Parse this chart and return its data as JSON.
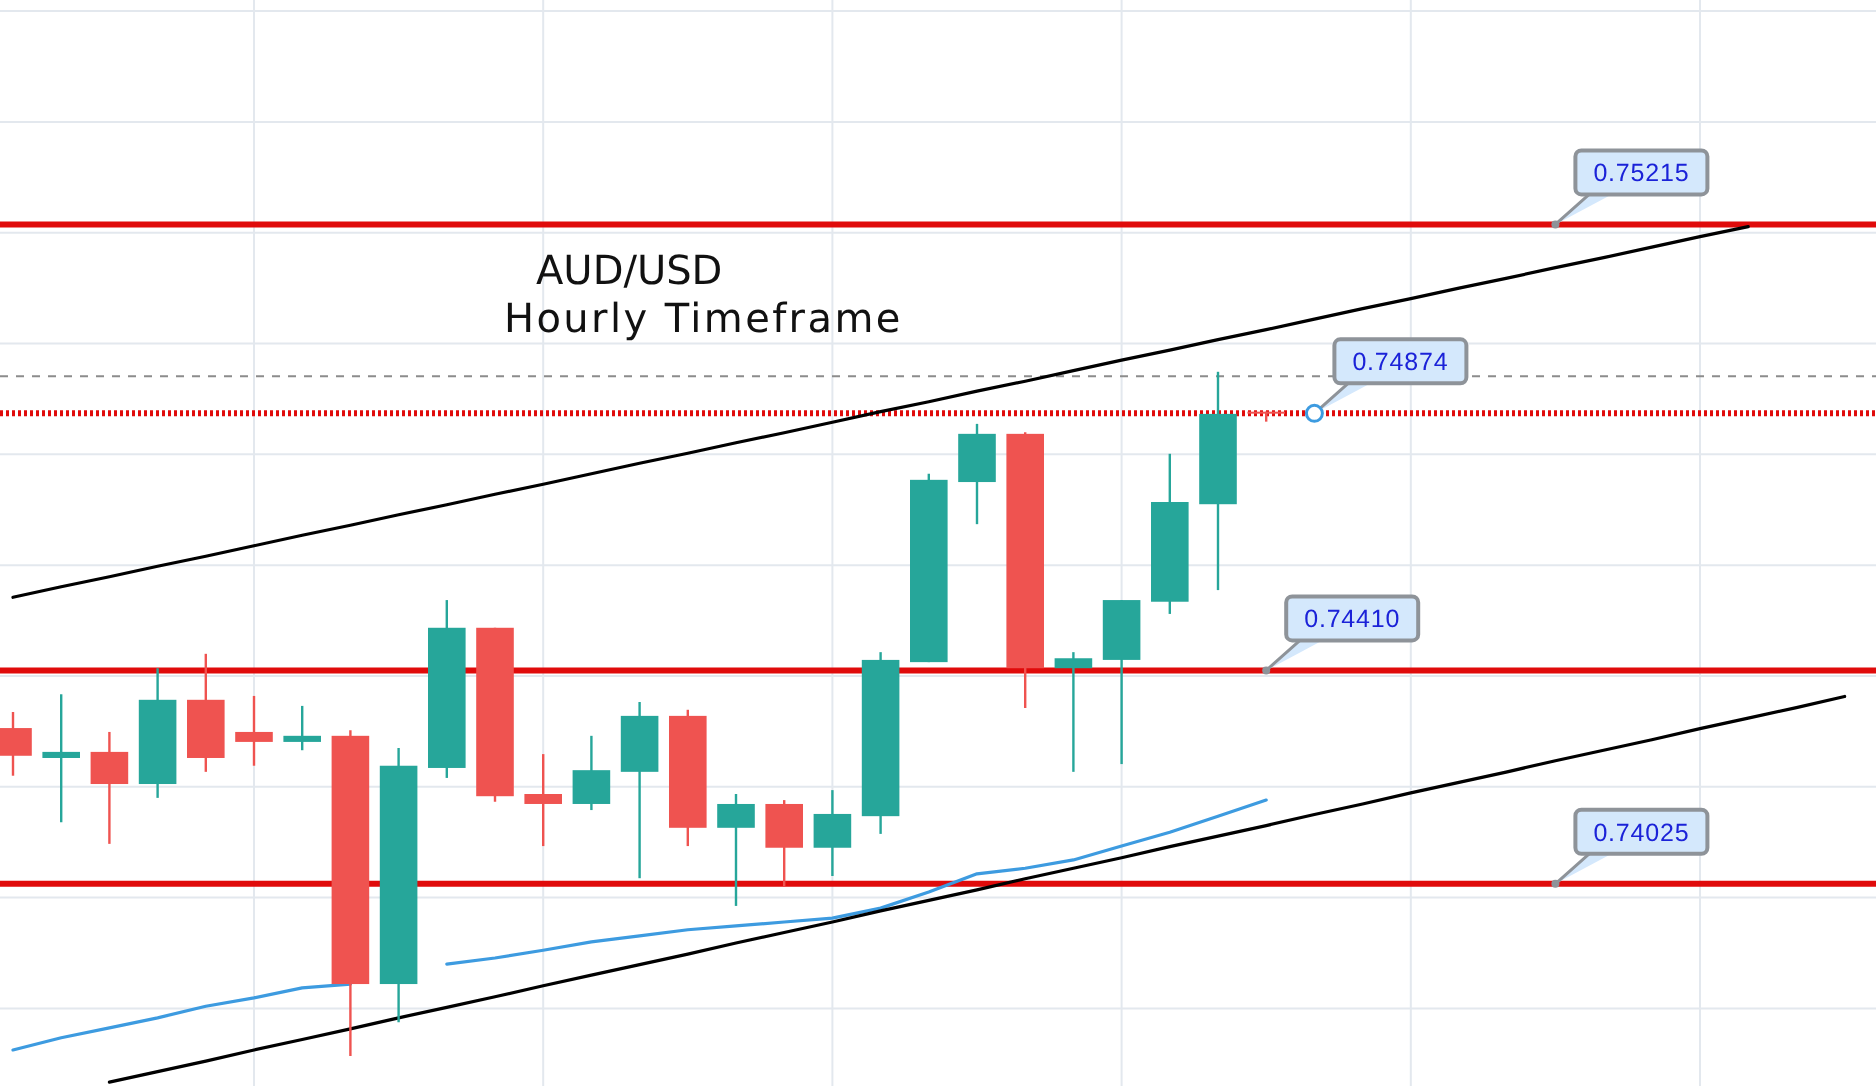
{
  "chart_data": {
    "type": "candlestick",
    "title": "AUD/USD",
    "subtitle": "Hourly Timeframe",
    "categories": [
      null,
      null,
      null,
      null,
      null,
      null,
      null,
      null,
      null,
      null,
      null,
      null,
      null,
      null,
      null,
      null,
      null,
      null,
      null,
      null,
      null,
      null,
      null,
      null,
      null,
      null,
      null,
      null,
      null,
      null,
      null,
      null,
      null,
      null,
      null,
      null,
      null,
      null,
      null
    ],
    "ohlc": [
      [
        0.74306,
        0.74335,
        0.7422,
        0.74256
      ],
      [
        0.74252,
        0.74367,
        0.74136,
        0.74263
      ],
      [
        0.74263,
        0.74299,
        0.74097,
        0.74205
      ],
      [
        0.74205,
        0.74414,
        0.7418,
        0.74357
      ],
      [
        0.74357,
        0.7444,
        0.74227,
        0.74252
      ],
      [
        0.74299,
        0.74364,
        0.74238,
        0.74281
      ],
      [
        0.74281,
        0.74346,
        0.74266,
        0.74292
      ],
      [
        0.74292,
        0.74302,
        0.73714,
        0.73844
      ],
      [
        0.73844,
        0.7427,
        0.73775,
        0.74238
      ],
      [
        0.74234,
        0.74537,
        0.74216,
        0.74487
      ],
      [
        0.74487,
        0.74487,
        0.74173,
        0.74183
      ],
      [
        0.74187,
        0.74259,
        0.74093,
        0.74169
      ],
      [
        0.74169,
        0.74292,
        0.74158,
        0.7423
      ],
      [
        0.74227,
        0.74353,
        0.74035,
        0.74328
      ],
      [
        0.74328,
        0.74339,
        0.74093,
        0.74126
      ],
      [
        0.74126,
        0.74187,
        0.73985,
        0.74169
      ],
      [
        0.74169,
        0.74176,
        0.74021,
        0.7409
      ],
      [
        0.7409,
        0.74194,
        0.74039,
        0.74151
      ],
      [
        0.74147,
        0.74443,
        0.74115,
        0.74429
      ],
      [
        0.74425,
        0.74765,
        0.74425,
        0.74754
      ],
      [
        0.7475,
        0.74855,
        0.74674,
        0.74837
      ],
      [
        0.74837,
        0.7484,
        0.74342,
        0.74414
      ],
      [
        0.74414,
        0.74443,
        0.74227,
        0.74432
      ],
      [
        0.74429,
        0.74537,
        0.74241,
        0.74537
      ],
      [
        0.74534,
        0.74801,
        0.74512,
        0.74714
      ],
      [
        0.7471,
        0.74949,
        0.74555,
        0.74873
      ],
      [
        0.74877,
        0.74877,
        0.74859,
        0.74874
      ],
      null,
      null,
      null,
      null,
      null,
      null,
      null,
      null,
      null,
      null,
      null,
      null
    ],
    "colors": [
      "#ef5350",
      "#26a69a",
      "#ef5350",
      "#26a69a",
      "#ef5350",
      "#ef5350",
      "#26a69a",
      "#ef5350",
      "#26a69a",
      "#26a69a",
      "#ef5350",
      "#ef5350",
      "#26a69a",
      "#26a69a",
      "#ef5350",
      "#26a69a",
      "#ef5350",
      "#26a69a",
      "#26a69a",
      "#26a69a",
      "#26a69a",
      "#ef5350",
      "#26a69a",
      "#26a69a",
      "#26a69a",
      "#26a69a",
      "#ef5350",
      null,
      null,
      null,
      null,
      null,
      null,
      null,
      null,
      null,
      null,
      null,
      null
    ],
    "series": [
      {
        "type": "line",
        "color": "#3d9be0",
        "values": [
          0.73725,
          0.73747,
          0.73765,
          0.73783,
          0.73804,
          0.73819,
          0.73837,
          0.73844,
          null,
          0.7388,
          0.73891,
          0.73905,
          0.7392,
          0.73931,
          0.73942,
          0.73949,
          0.73956,
          0.73963,
          0.73981,
          0.7401,
          0.74043,
          0.74053,
          0.74068,
          0.74093,
          0.74118,
          0.74147,
          0.74176,
          null,
          null,
          null,
          null,
          null,
          null,
          null,
          null,
          null,
          null,
          null,
          null
        ]
      },
      {
        "type": "line",
        "color": "#000000",
        "values": [
          0.74542,
          0.74561,
          0.74579,
          0.74598,
          0.74616,
          0.74635,
          0.74654,
          0.74672,
          0.74691,
          0.74709,
          0.74728,
          0.74746,
          0.74765,
          0.74784,
          0.74802,
          0.74821,
          0.74839,
          0.74858,
          0.74877,
          0.74895,
          0.74914,
          0.74932,
          0.74951,
          0.7497,
          0.74988,
          0.75007,
          0.75025,
          0.75044,
          0.75063,
          0.75081,
          0.751,
          0.75118,
          0.75137,
          0.75155,
          0.75174,
          0.75193,
          0.75211,
          null,
          null
        ]
      },
      {
        "type": "line",
        "color": "#000000",
        "values": [
          null,
          null,
          0.73667,
          0.73686,
          0.73705,
          0.73725,
          0.73744,
          0.73763,
          0.73783,
          0.73802,
          0.73821,
          0.73841,
          0.7386,
          0.73879,
          0.73898,
          0.73918,
          0.73937,
          0.73956,
          0.73976,
          0.73995,
          0.74014,
          0.74034,
          0.74053,
          0.74072,
          0.74092,
          0.74111,
          0.7413,
          0.7415,
          0.74169,
          0.74189,
          0.74208,
          0.74227,
          0.74247,
          0.74266,
          0.74285,
          0.74305,
          0.74324,
          0.74343,
          0.74363
        ]
      }
    ],
    "ylim": [
      0.7366,
      0.7562
    ],
    "yticks": [
      {
        "value": 0.738,
        "label": null
      },
      {
        "value": 0.74,
        "label": null
      },
      {
        "value": 0.742,
        "label": null
      },
      {
        "value": 0.744,
        "label": null
      },
      {
        "value": 0.746,
        "label": null
      },
      {
        "value": 0.748,
        "label": null
      },
      {
        "value": 0.75,
        "label": null
      },
      {
        "value": 0.752,
        "label": null
      },
      {
        "value": 0.754,
        "label": null
      },
      {
        "value": 0.756,
        "label": null
      }
    ],
    "grid": true,
    "tick_labels": false,
    "ref_lines": [
      {
        "axis": "y",
        "value": 0.75215,
        "label": "0.75215",
        "color": "#e00b0b"
      },
      {
        "axis": "y",
        "value": 0.74874,
        "label": "0.74874",
        "color": "#e00b0b",
        "line_style": "dotted"
      },
      {
        "axis": "y",
        "value": 0.7441,
        "label": "0.74410",
        "color": "#e00b0b"
      },
      {
        "axis": "y",
        "value": 0.74025,
        "label": "0.74025",
        "color": "#e00b0b"
      },
      {
        "axis": "y",
        "value": 0.74941,
        "color": "#8c8c8c",
        "line_style": "dashed"
      }
    ]
  }
}
